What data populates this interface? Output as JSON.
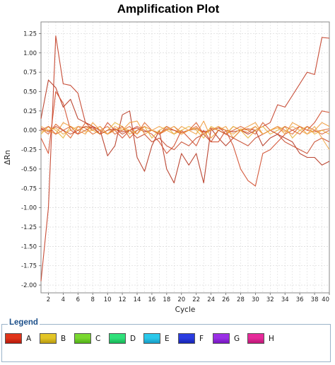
{
  "chart_data": {
    "type": "line",
    "title": "Amplification Plot",
    "xlabel": "Cycle",
    "ylabel": "ΔRn",
    "xlim": [
      1,
      40
    ],
    "ylim": [
      -2.1,
      1.4
    ],
    "xticks": [
      2,
      4,
      6,
      8,
      10,
      12,
      14,
      16,
      18,
      20,
      22,
      24,
      26,
      28,
      30,
      32,
      34,
      36,
      38,
      40
    ],
    "xtick_labels": [
      "2",
      "4",
      "6",
      "8",
      "10",
      "12",
      "14",
      "16",
      "18",
      "20",
      "22",
      "24",
      "26",
      "28",
      "30",
      "32",
      "34",
      "36",
      "38",
      "40"
    ],
    "yticks": [
      1.25,
      1.0,
      0.75,
      0.5,
      0.25,
      0.0,
      -0.25,
      -0.5,
      -0.75,
      -1.0,
      -1.25,
      -1.5,
      -1.75,
      -2.0
    ],
    "ytick_labels": [
      "1.25",
      "1.00",
      "0.75",
      "0.50",
      "0.25",
      "0.00",
      "-0.25",
      "-0.50",
      "-0.75",
      "-1.00",
      "-1.25",
      "-1.50",
      "-1.75",
      "-2.00"
    ],
    "grid": true,
    "legend_position": "bottom",
    "x": [
      1,
      2,
      3,
      4,
      5,
      6,
      7,
      8,
      9,
      10,
      11,
      12,
      13,
      14,
      15,
      16,
      17,
      18,
      19,
      20,
      21,
      22,
      23,
      24,
      25,
      26,
      27,
      28,
      29,
      30,
      31,
      32,
      33,
      34,
      35,
      36,
      37,
      38,
      39,
      40
    ],
    "series": [
      {
        "color": "#c23b22",
        "values": [
          -1.95,
          -1.0,
          1.22,
          0.6,
          0.58,
          0.48,
          0.1,
          0.05,
          0.0,
          -0.05,
          0.02,
          -0.02,
          0.0,
          0.03,
          -0.02,
          0.0,
          -0.05,
          0.02,
          0.0,
          -0.03,
          0.0,
          0.02,
          -0.02,
          0.0,
          0.03,
          0.0,
          -0.02,
          0.0,
          0.02,
          0.0,
          0.05,
          0.1,
          0.33,
          0.3,
          0.45,
          0.6,
          0.75,
          0.72,
          1.2,
          1.19
        ]
      },
      {
        "color": "#b5341e",
        "values": [
          0.15,
          0.65,
          0.55,
          0.3,
          0.4,
          0.15,
          0.1,
          0.05,
          0.0,
          -0.33,
          -0.2,
          0.2,
          0.25,
          -0.35,
          -0.53,
          -0.2,
          0.0,
          -0.5,
          -0.68,
          -0.3,
          -0.45,
          -0.3,
          -0.68,
          0.02,
          -0.1,
          -0.2,
          -0.1,
          0.0,
          -0.05,
          0.0,
          -0.2,
          -0.1,
          -0.05,
          -0.1,
          -0.15,
          -0.3,
          -0.35,
          -0.35,
          -0.45,
          -0.4
        ]
      },
      {
        "color": "#d04a2a",
        "values": [
          -0.1,
          -0.3,
          0.5,
          0.35,
          0.0,
          -0.05,
          0.0,
          0.05,
          -0.05,
          0.1,
          0.0,
          -0.1,
          0.0,
          0.05,
          0.0,
          -0.05,
          -0.15,
          -0.3,
          -0.2,
          0.0,
          -0.1,
          -0.2,
          0.0,
          -0.15,
          -0.15,
          0.0,
          -0.2,
          -0.5,
          -0.65,
          -0.72,
          -0.3,
          -0.25,
          -0.15,
          -0.05,
          0.0,
          0.05,
          0.0,
          0.1,
          0.25,
          0.23
        ]
      },
      {
        "color": "#e0672e",
        "values": [
          0.02,
          -0.05,
          0.08,
          0.0,
          -0.1,
          0.05,
          0.03,
          -0.05,
          0.0,
          0.05,
          -0.05,
          0.0,
          0.05,
          -0.05,
          0.1,
          0.0,
          -0.05,
          0.0,
          0.05,
          -0.03,
          0.0,
          0.05,
          -0.05,
          0.03,
          0.0,
          -0.05,
          0.05,
          0.0,
          -0.03,
          0.05,
          -0.05,
          0.0,
          0.05,
          0.0,
          -0.05,
          0.05,
          0.0,
          -0.02,
          0.0,
          0.02
        ]
      },
      {
        "color": "#ef9a3a",
        "values": [
          0.05,
          0.0,
          -0.05,
          0.1,
          0.05,
          0.0,
          -0.05,
          0.1,
          0.0,
          -0.05,
          0.05,
          0.0,
          0.1,
          0.12,
          -0.05,
          0.0,
          0.05,
          0.0,
          -0.05,
          0.05,
          0.0,
          -0.05,
          0.12,
          -0.1,
          0.0,
          0.05,
          -0.1,
          0.0,
          0.05,
          0.1,
          -0.05,
          0.0,
          0.05,
          -0.05,
          0.1,
          0.05,
          -0.05,
          0.0,
          0.1,
          0.05
        ]
      },
      {
        "color": "#e8b23a",
        "values": [
          -0.05,
          0.05,
          0.0,
          -0.1,
          0.05,
          0.0,
          0.05,
          0.0,
          -0.05,
          0.0,
          0.1,
          0.05,
          -0.05,
          0.0,
          0.05,
          -0.1,
          0.0,
          0.05,
          -0.05,
          0.0,
          0.05,
          0.0,
          -0.1,
          0.05,
          0.0,
          -0.05,
          0.05,
          0.0,
          -0.1,
          0.0,
          0.05,
          -0.05,
          0.0,
          0.05,
          -0.1,
          0.0,
          0.05,
          -0.05,
          0.0,
          -0.05
        ]
      },
      {
        "color": "#d9592a",
        "values": [
          0.0,
          0.05,
          -0.05,
          0.0,
          0.05,
          -0.05,
          0.1,
          0.0,
          0.05,
          -0.05,
          0.0,
          0.05,
          -0.1,
          0.0,
          0.05,
          0.0,
          -0.05,
          0.05,
          0.0,
          -0.05,
          0.0,
          0.1,
          -0.05,
          0.0,
          0.05,
          -0.05,
          0.0,
          0.05,
          0.0,
          -0.05,
          0.1,
          0.0,
          -0.05,
          0.05,
          0.0,
          -0.05,
          0.05,
          0.0,
          -0.05,
          0.0
        ]
      },
      {
        "color": "#c84a2c",
        "values": [
          0.03,
          -0.02,
          0.05,
          0.0,
          -0.05,
          0.0,
          0.05,
          0.03,
          -0.05,
          0.0,
          0.02,
          -0.05,
          0.0,
          -0.1,
          -0.05,
          -0.15,
          -0.1,
          -0.2,
          -0.25,
          -0.15,
          -0.2,
          -0.1,
          -0.05,
          -0.15,
          0.0,
          -0.05,
          -0.1,
          -0.15,
          -0.2,
          -0.1,
          -0.05,
          0.0,
          -0.05,
          -0.15,
          -0.2,
          -0.25,
          -0.3,
          -0.15,
          -0.1,
          -0.15
        ]
      },
      {
        "color": "#f0a84a",
        "values": [
          -0.02,
          0.0,
          0.03,
          -0.05,
          0.0,
          0.05,
          -0.02,
          0.0,
          0.05,
          -0.05,
          0.0,
          0.03,
          0.0,
          -0.05,
          0.05,
          0.0,
          -0.03,
          0.0,
          0.05,
          -0.05,
          0.0,
          0.03,
          -0.05,
          0.0,
          0.05,
          0.0,
          -0.05,
          0.02,
          0.0,
          0.05,
          -0.05,
          0.0,
          0.03,
          -0.02,
          0.05,
          0.0,
          -0.05,
          0.05,
          -0.1,
          -0.25
        ]
      }
    ]
  },
  "legend": {
    "title": "Legend",
    "items": [
      {
        "label": "A",
        "color": "#e0341a",
        "color2": "#b5180c"
      },
      {
        "label": "B",
        "color": "#e3c526",
        "color2": "#b89a10"
      },
      {
        "label": "C",
        "color": "#7ad830",
        "color2": "#4fae16"
      },
      {
        "label": "D",
        "color": "#2fe07a",
        "color2": "#16b456"
      },
      {
        "label": "E",
        "color": "#2ac8ea",
        "color2": "#169ac4"
      },
      {
        "label": "F",
        "color": "#2a3ce0",
        "color2": "#1624b0"
      },
      {
        "label": "G",
        "color": "#9a30e6",
        "color2": "#7416bc"
      },
      {
        "label": "H",
        "color": "#e62a9a",
        "color2": "#bc1674"
      }
    ]
  }
}
